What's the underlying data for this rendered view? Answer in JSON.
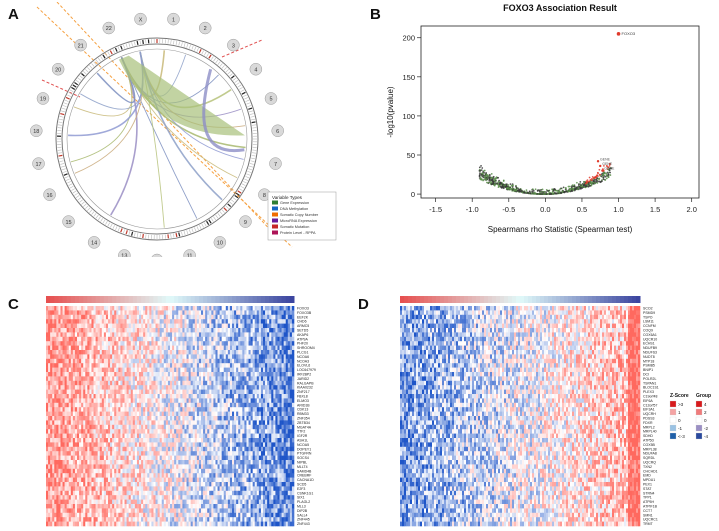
{
  "panels": {
    "a": "A",
    "b": "B",
    "c": "C",
    "d": "D"
  },
  "circos": {
    "chromosomes": [
      "1",
      "2",
      "3",
      "4",
      "5",
      "6",
      "7",
      "8",
      "9",
      "10",
      "11",
      "12",
      "13",
      "14",
      "15",
      "16",
      "17",
      "18",
      "19",
      "20",
      "21",
      "22",
      "X"
    ],
    "legend": {
      "title": "Variable Types",
      "items": [
        {
          "label": "Gene Expression",
          "color": "#2e7d32"
        },
        {
          "label": "DNA Methylation",
          "color": "#1565c0"
        },
        {
          "label": "Somatic Copy Number",
          "color": "#ef6c00"
        },
        {
          "label": "MicroRNA Expression",
          "color": "#6a1b9a"
        },
        {
          "label": "Somatic Mutation",
          "color": "#c62828"
        },
        {
          "label": "Protein Level - RPPA",
          "color": "#ad1457"
        }
      ]
    }
  },
  "chart_data": [
    {
      "type": "scatter",
      "title": "FOXO3 Association Result",
      "xlabel": "Spearmans rho Statistic (Spearman test)",
      "ylabel": "-log10(pvalue)",
      "xlim": [
        -1.7,
        2.1
      ],
      "ylim": [
        -5,
        215
      ],
      "xticks": [
        "-1.5",
        "-1.0",
        "-0.5",
        "0.0",
        "0.5",
        "1.0",
        "1.5",
        "2.0"
      ],
      "yticks": [
        "0",
        "50",
        "100",
        "150",
        "200"
      ],
      "highlight": {
        "x": 1.0,
        "y": 205,
        "label": "FOXO3"
      },
      "labeled_points": [
        {
          "x": 0.72,
          "y": 42,
          "label": "GENE"
        },
        {
          "x": 0.75,
          "y": 36,
          "label": "GENE"
        },
        {
          "x": 0.78,
          "y": 30,
          "label": "GENE"
        }
      ],
      "curve": {
        "neg_x": [
          -0.85,
          -0.7,
          -0.55,
          -0.4,
          -0.25,
          -0.1,
          0.0
        ],
        "neg_y": [
          30,
          24,
          16,
          9,
          4,
          1,
          0
        ],
        "pos_x": [
          0.0,
          0.15,
          0.3,
          0.45,
          0.6,
          0.75,
          0.85
        ],
        "pos_y": [
          0,
          1,
          4,
          9,
          17,
          27,
          35
        ]
      }
    }
  ],
  "heatmap_c": {
    "genes": [
      "FOXO3",
      "FOXO3B",
      "EEF2K",
      "CHD6",
      "ARMC5",
      "SETD5",
      "AKAP6",
      "ATP9A",
      "PHF20",
      "SHROOM4",
      "PLCG1",
      "NCOA6",
      "NCOA3",
      "ELOVL6",
      "LOC647979",
      "IRF2BP2",
      "JARID2",
      "RALGAPB",
      "KIAA0232",
      "ZNF217",
      "FBXL8",
      "ELMO3",
      "ARID1B",
      "CDK13",
      "RBM33",
      "ZNF354",
      "ZBTB34",
      "MGAT4A",
      "TTF2",
      "IGF2R",
      "ASH1L",
      "NCOA5",
      "DOPEY1",
      "PTGFRN",
      "SOCS4",
      "NIPBL",
      "MLLT4",
      "SAMD4B",
      "CREBRF",
      "CACNA1D",
      "SCD5",
      "E2F3",
      "CSNK1G1",
      "SIX1",
      "PLAGL2",
      "MLL3",
      "DIP2B",
      "SALL4",
      "ZNF445",
      "ZNF443"
    ],
    "legend": {
      "z_title": "Z-Score",
      "group_title": "Group",
      "z_levels": [
        ">3",
        "1",
        "0",
        "-1",
        "<-3"
      ],
      "group_levels": [
        "4",
        "2",
        "0",
        "-2",
        "-4"
      ]
    }
  },
  "heatmap_d": {
    "genes": [
      "SCO2",
      "PSMD9",
      "TSPO",
      "LSM11",
      "CCNFM",
      "COQ9",
      "COX6A1",
      "UQCR10",
      "ECHS1",
      "NDUFB9",
      "NDUFS3",
      "NUDT8",
      "MTP18",
      "PSMB5",
      "BNIP1",
      "DCI",
      "POLR2L",
      "TSPAN1",
      "BLOC1S1",
      "PLEX3",
      "C19orf48",
      "EIF6A",
      "C12orf57",
      "EIF3A1",
      "UQCRH",
      "PDSS3",
      "FDXR",
      "MRPL2",
      "MRPL40",
      "SDHD",
      "ATP5D",
      "COX5B",
      "MRPL38",
      "NDUFA8",
      "SQRDL",
      "UQCRQ",
      "TXN2",
      "CHCHD1",
      "EMD",
      "MPDU1",
      "PEX1",
      "STAT",
      "STRN4",
      "TPP1",
      "ATP5H",
      "ATPIF1B",
      "CCT7",
      "SMN1",
      "UQCRC1",
      "TRMT"
    ]
  }
}
